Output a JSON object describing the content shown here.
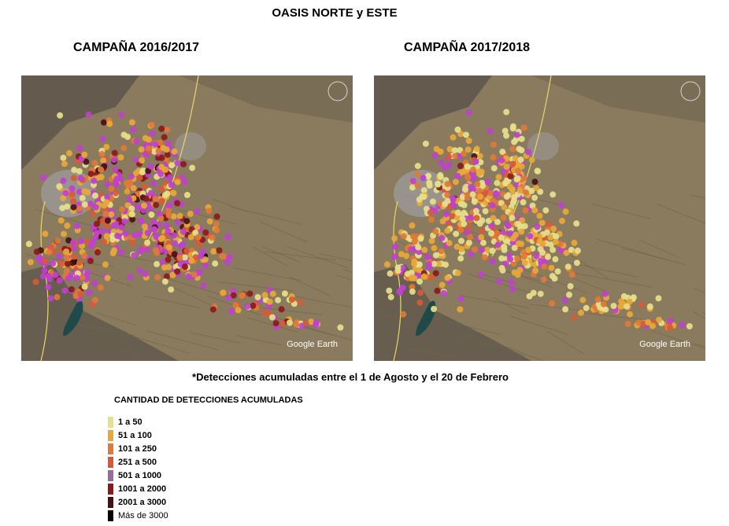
{
  "header": {
    "title": "OASIS NORTE y ESTE",
    "campaign_left": "CAMPAÑA 2016/2017",
    "campaign_right": "CAMPAÑA 2017/2018"
  },
  "maps": {
    "logo_text": "Google Earth",
    "left_label": "CAMPAÑA 2016/2017",
    "right_label": "CAMPAÑA 2017/2018"
  },
  "footnote": "*Detecciones acumuladas entre el 1 de Agosto y el 20 de Febrero",
  "legend": {
    "title": "CANTIDAD DE DETECCIONES ACUMULADAS",
    "items": [
      {
        "label": "1 a 50",
        "color": "#e6e08a"
      },
      {
        "label": "51 a 100",
        "color": "#e8a838"
      },
      {
        "label": "101 a 250",
        "color": "#e07a38"
      },
      {
        "label": "251 a 500",
        "color": "#d65a38"
      },
      {
        "label": "501 a 1000",
        "color": "#9a6a9a"
      },
      {
        "label": "1001 a 2000",
        "color": "#8a1a1a"
      },
      {
        "label": "2001 a 3000",
        "color": "#4a1010"
      },
      {
        "label": "Más de 3000",
        "color": "#000000"
      }
    ]
  },
  "colors": {
    "terrain": "#8a7a5e",
    "mountains": "#5a5348",
    "urban": "#9c9c9c",
    "lake": "#1e4a4a",
    "magenta": "#c040d0"
  }
}
